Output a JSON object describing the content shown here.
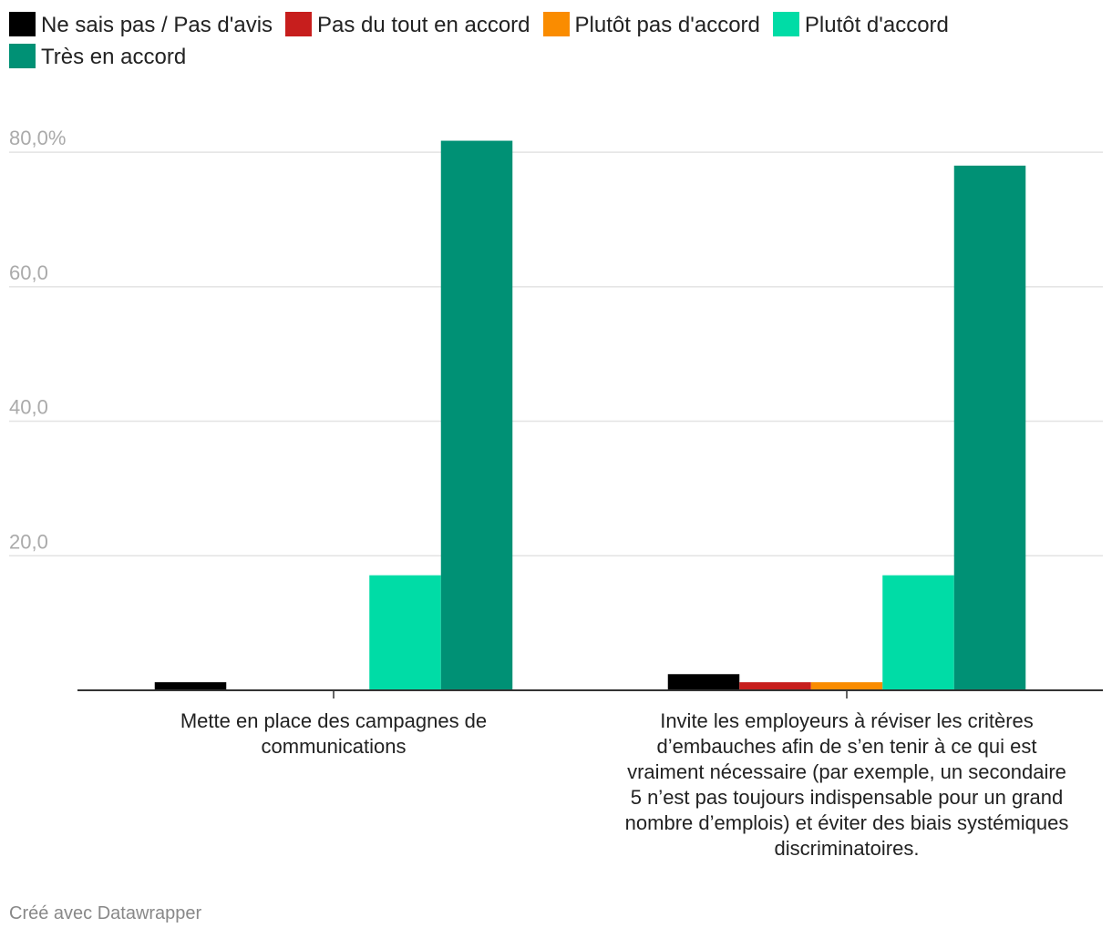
{
  "chart_data": {
    "type": "bar",
    "categories": [
      "Mette en place des campagnes de communications",
      "Invite les employeurs à réviser les critères d’embauches afin de s’en tenir à ce qui est vraiment nécessaire (par exemple, un secondaire 5 n’est pas toujours indispensable pour un grand nombre d’emplois) et éviter des biais systémiques discriminatoires."
    ],
    "series": [
      {
        "name": "Ne sais pas / Pas d'avis",
        "color": "#000000",
        "values": [
          1.2,
          2.4
        ]
      },
      {
        "name": "Pas du tout en accord",
        "color": "#c71e1d",
        "values": [
          0,
          1.2
        ]
      },
      {
        "name": "Plutôt pas d'accord",
        "color": "#fa8c00",
        "values": [
          0,
          1.2
        ]
      },
      {
        "name": "Plutôt d'accord",
        "color": "#00dca6",
        "values": [
          17.1,
          17.1
        ]
      },
      {
        "name": "Très en accord",
        "color": "#009175",
        "values": [
          81.7,
          78.0
        ]
      }
    ],
    "yticks": [
      {
        "value": 20,
        "label": "20,0"
      },
      {
        "value": 40,
        "label": "40,0"
      },
      {
        "value": 60,
        "label": "60,0"
      },
      {
        "value": 80,
        "label": "80,0%"
      }
    ],
    "ylim": [
      0,
      88
    ],
    "grid": true,
    "legend": "top-left"
  },
  "footer": {
    "credit": "Créé avec Datawrapper"
  }
}
